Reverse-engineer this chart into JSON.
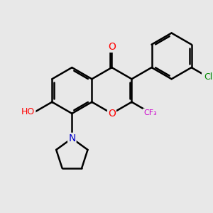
{
  "background_color": "#e8e8e8",
  "bond_color": "#000000",
  "bond_width": 1.8,
  "atom_colors": {
    "O": "#ff0000",
    "N": "#0000cc",
    "F": "#cc00cc",
    "Cl": "#008800"
  },
  "font_size": 9,
  "fig_size": [
    3.0,
    3.0
  ],
  "dpi": 100
}
